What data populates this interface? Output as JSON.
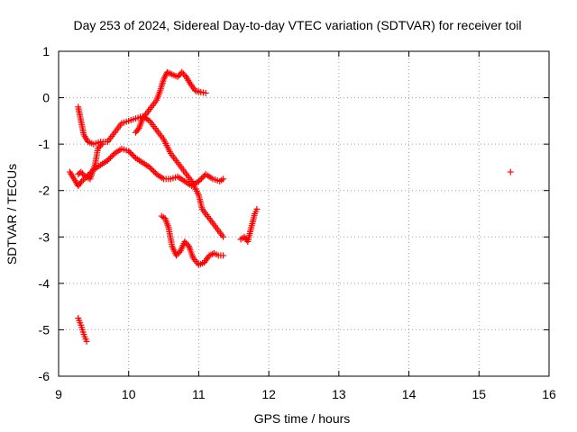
{
  "chart_data": {
    "type": "scatter",
    "title": "Day 253 of 2024, Sidereal Day-to-day VTEC variation (SDTVAR) for receiver toil",
    "xlabel": "GPS time / hours",
    "ylabel": "SDTVAR / TECUs",
    "xlim": [
      9,
      16
    ],
    "ylim": [
      -6,
      1
    ],
    "xticks": [
      "9",
      "10",
      "11",
      "12",
      "13",
      "14",
      "15",
      "16"
    ],
    "yticks": [
      "1",
      "0",
      "-1",
      "-2",
      "-3",
      "-4",
      "-5",
      "-6"
    ],
    "grid": true,
    "marker": "plus",
    "series_color": "#ff0000",
    "series": [
      {
        "name": "track-1",
        "points": [
          [
            9.16,
            -1.6
          ],
          [
            9.22,
            -1.75
          ],
          [
            9.28,
            -1.9
          ],
          [
            9.33,
            -1.8
          ],
          [
            9.4,
            -1.7
          ],
          [
            9.5,
            -1.55
          ],
          [
            9.6,
            -1.45
          ],
          [
            9.7,
            -1.35
          ],
          [
            9.8,
            -1.2
          ],
          [
            9.9,
            -1.1
          ],
          [
            10.0,
            -1.15
          ],
          [
            10.1,
            -1.3
          ],
          [
            10.2,
            -1.4
          ],
          [
            10.3,
            -1.5
          ],
          [
            10.4,
            -1.65
          ],
          [
            10.5,
            -1.75
          ],
          [
            10.6,
            -1.75
          ],
          [
            10.7,
            -1.7
          ],
          [
            10.8,
            -1.8
          ],
          [
            10.9,
            -1.9
          ],
          [
            11.0,
            -1.8
          ],
          [
            11.1,
            -1.65
          ],
          [
            11.2,
            -1.75
          ],
          [
            11.3,
            -1.8
          ],
          [
            11.35,
            -1.75
          ]
        ]
      },
      {
        "name": "track-2",
        "points": [
          [
            9.28,
            -0.2
          ],
          [
            9.32,
            -0.5
          ],
          [
            9.36,
            -0.8
          ],
          [
            9.42,
            -0.95
          ],
          [
            9.5,
            -1.0
          ],
          [
            9.6,
            -0.95
          ],
          [
            9.7,
            -0.95
          ],
          [
            9.8,
            -0.75
          ],
          [
            9.9,
            -0.55
          ],
          [
            10.0,
            -0.5
          ],
          [
            10.1,
            -0.45
          ],
          [
            10.2,
            -0.4
          ],
          [
            10.3,
            -0.5
          ],
          [
            10.4,
            -0.7
          ],
          [
            10.5,
            -0.9
          ],
          [
            10.6,
            -1.2
          ],
          [
            10.7,
            -1.4
          ],
          [
            10.8,
            -1.6
          ],
          [
            10.9,
            -1.8
          ],
          [
            11.0,
            -2.1
          ],
          [
            11.05,
            -2.4
          ],
          [
            11.15,
            -2.6
          ],
          [
            11.25,
            -2.8
          ],
          [
            11.35,
            -3.0
          ]
        ]
      },
      {
        "name": "track-3",
        "points": [
          [
            9.28,
            -1.65
          ],
          [
            9.32,
            -1.6
          ],
          [
            9.38,
            -1.7
          ],
          [
            9.45,
            -1.75
          ],
          [
            9.52,
            -1.45
          ],
          [
            9.56,
            -1.1
          ],
          [
            9.62,
            -1.0
          ]
        ]
      },
      {
        "name": "track-4",
        "points": [
          [
            10.1,
            -0.75
          ],
          [
            10.15,
            -0.65
          ],
          [
            10.2,
            -0.45
          ],
          [
            10.3,
            -0.25
          ],
          [
            10.4,
            -0.05
          ],
          [
            10.45,
            0.15
          ],
          [
            10.5,
            0.4
          ],
          [
            10.55,
            0.55
          ],
          [
            10.62,
            0.5
          ],
          [
            10.7,
            0.45
          ],
          [
            10.76,
            0.55
          ],
          [
            10.82,
            0.45
          ],
          [
            10.88,
            0.3
          ],
          [
            10.95,
            0.15
          ],
          [
            11.03,
            0.12
          ],
          [
            11.1,
            0.1
          ]
        ]
      },
      {
        "name": "track-5",
        "points": [
          [
            10.47,
            -2.55
          ],
          [
            10.52,
            -2.6
          ],
          [
            10.57,
            -2.8
          ],
          [
            10.62,
            -3.2
          ],
          [
            10.68,
            -3.4
          ],
          [
            10.74,
            -3.3
          ],
          [
            10.8,
            -3.1
          ],
          [
            10.86,
            -3.2
          ],
          [
            10.92,
            -3.45
          ],
          [
            11.0,
            -3.6
          ],
          [
            11.08,
            -3.55
          ],
          [
            11.15,
            -3.4
          ],
          [
            11.22,
            -3.35
          ],
          [
            11.28,
            -3.4
          ],
          [
            11.35,
            -3.4
          ]
        ]
      },
      {
        "name": "track-6",
        "points": [
          [
            11.6,
            -3.05
          ],
          [
            11.65,
            -3.0
          ],
          [
            11.7,
            -3.1
          ],
          [
            11.75,
            -2.8
          ],
          [
            11.8,
            -2.5
          ],
          [
            11.83,
            -2.4
          ]
        ]
      },
      {
        "name": "track-7",
        "points": [
          [
            9.28,
            -4.75
          ],
          [
            9.32,
            -4.9
          ],
          [
            9.36,
            -5.1
          ],
          [
            9.4,
            -5.25
          ]
        ]
      },
      {
        "name": "isolated",
        "points": [
          [
            15.45,
            -1.6
          ]
        ]
      }
    ]
  }
}
